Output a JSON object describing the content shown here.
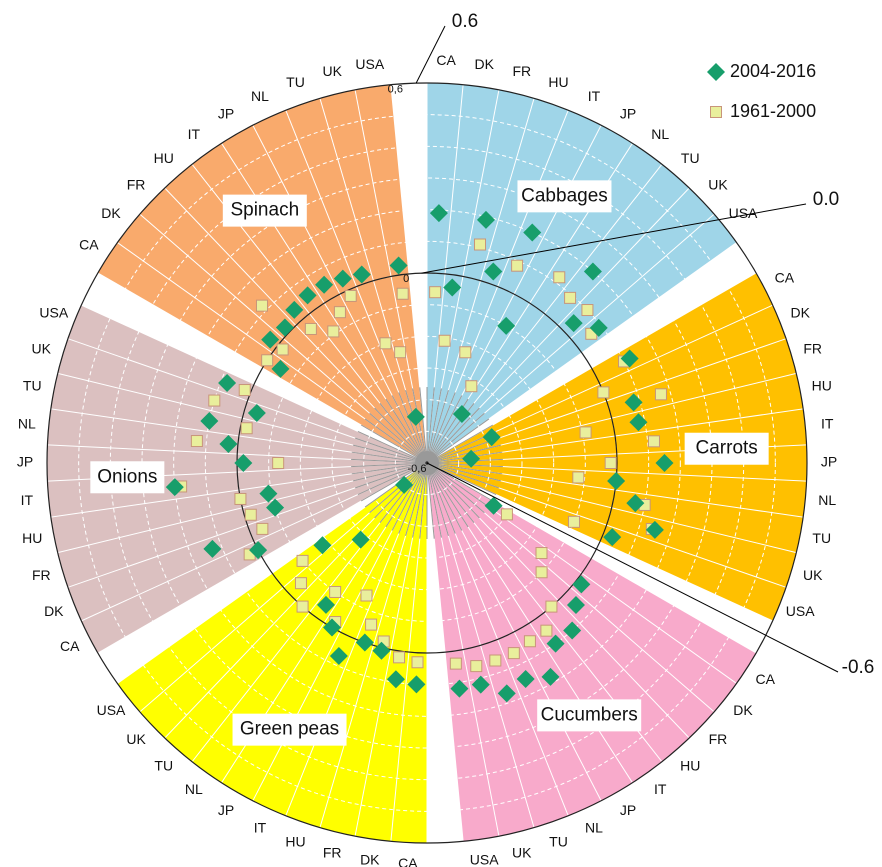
{
  "chart_data": {
    "type": "polar-scatter",
    "groups": [
      {
        "name": "Cabbages",
        "color": "#9fd5e8"
      },
      {
        "name": "Carrots",
        "color": "#ffc000"
      },
      {
        "name": "Cucumbers",
        "color": "#f8aacb"
      },
      {
        "name": "Green peas",
        "color": "#ffff00"
      },
      {
        "name": "Onions",
        "color": "#dbc0c0"
      },
      {
        "name": "Spinach",
        "color": "#f9aa6c"
      }
    ],
    "categories": [
      "CA",
      "DK",
      "FR",
      "HU",
      "IT",
      "JP",
      "NL",
      "TU",
      "UK",
      "USA",
      null,
      "CA",
      "DK",
      "FR",
      "HU",
      "IT",
      "JP",
      "NL",
      "TU",
      "UK",
      "USA",
      null,
      "CA",
      "DK",
      "FR",
      "HU",
      "IT",
      "JP",
      "NL",
      "TU",
      "UK",
      "USA",
      null,
      "CA",
      "DK",
      "FR",
      "HU",
      "IT",
      "JP",
      "NL",
      "TU",
      "UK",
      "USA",
      null,
      "CA",
      "DK",
      "FR",
      "HU",
      "IT",
      "JP",
      "NL",
      "TU",
      "UK",
      "USA",
      null,
      "CA",
      "DK",
      "FR",
      "HU",
      "IT",
      "JP",
      "NL",
      "TU",
      "UK",
      "USA",
      null
    ],
    "series": [
      {
        "name": "2004-2016",
        "color": "#179e6b",
        "marker": "diamond",
        "values": [
          0.19,
          -0.04,
          0.19,
          0.04,
          0.2,
          -0.1,
          -0.41,
          0.2,
          0.04,
          0.09,
          null,
          0.12,
          -0.38,
          0.08,
          0.08,
          -0.46,
          0.15,
          0.0,
          0.07,
          0.15,
          0.03,
          null,
          -0.35,
          0.02,
          0.05,
          0.1,
          0.1,
          0.18,
          0.15,
          0.17,
          0.12,
          0.12,
          null,
          0.1,
          0.09,
          0.01,
          0.0,
          0.07,
          0.0,
          -0.05,
          -0.28,
          -0.5,
          -0.18,
          null,
          0.0,
          0.13,
          -0.1,
          -0.09,
          0.2,
          -0.02,
          0.03,
          0.1,
          -0.04,
          0.08,
          null,
          -0.05,
          0.03,
          0.02,
          0.04,
          0.05,
          0.05,
          0.04,
          0.03,
          -0.45,
          0.03,
          null
        ]
      },
      {
        "name": "1961-2000",
        "color": "#e9ef9c",
        "marker": "square",
        "values": [
          -0.06,
          -0.21,
          0.11,
          -0.23,
          0.085,
          -0.32,
          0.12,
          0.09,
          0.1,
          0.06,
          null,
          0.1,
          0.0,
          0.17,
          -0.09,
          0.12,
          -0.02,
          -0.12,
          0.1,
          0.14,
          -0.1,
          null,
          -0.3,
          -0.14,
          -0.1,
          0.0,
          0.05,
          0.05,
          0.06,
          0.06,
          0.06,
          0.04,
          null,
          0.03,
          0.02,
          -0.02,
          -0.06,
          -0.14,
          -0.02,
          -0.1,
          0.0,
          -0.05,
          -0.1,
          null,
          0.03,
          -0.04,
          -0.02,
          0.0,
          0.18,
          -0.13,
          0.13,
          -0.02,
          0.1,
          0.02,
          null,
          0.0,
          -0.02,
          0.12,
          -0.04,
          -0.09,
          -0.05,
          -0.02,
          -0.2,
          -0.24,
          -0.06,
          null
        ]
      }
    ],
    "rlim": [
      -0.6,
      0.6
    ],
    "rticks": [
      {
        "value": -0.6,
        "label": "-0,6"
      },
      0,
      {
        "value": 0.6,
        "label": "0,6"
      }
    ],
    "annotations": [
      {
        "value": 0.6,
        "label": "0.6"
      },
      {
        "value": 0,
        "label": "0.0"
      },
      {
        "value": -0.6,
        "label": "-0.6"
      }
    ],
    "legend": "top-right"
  }
}
